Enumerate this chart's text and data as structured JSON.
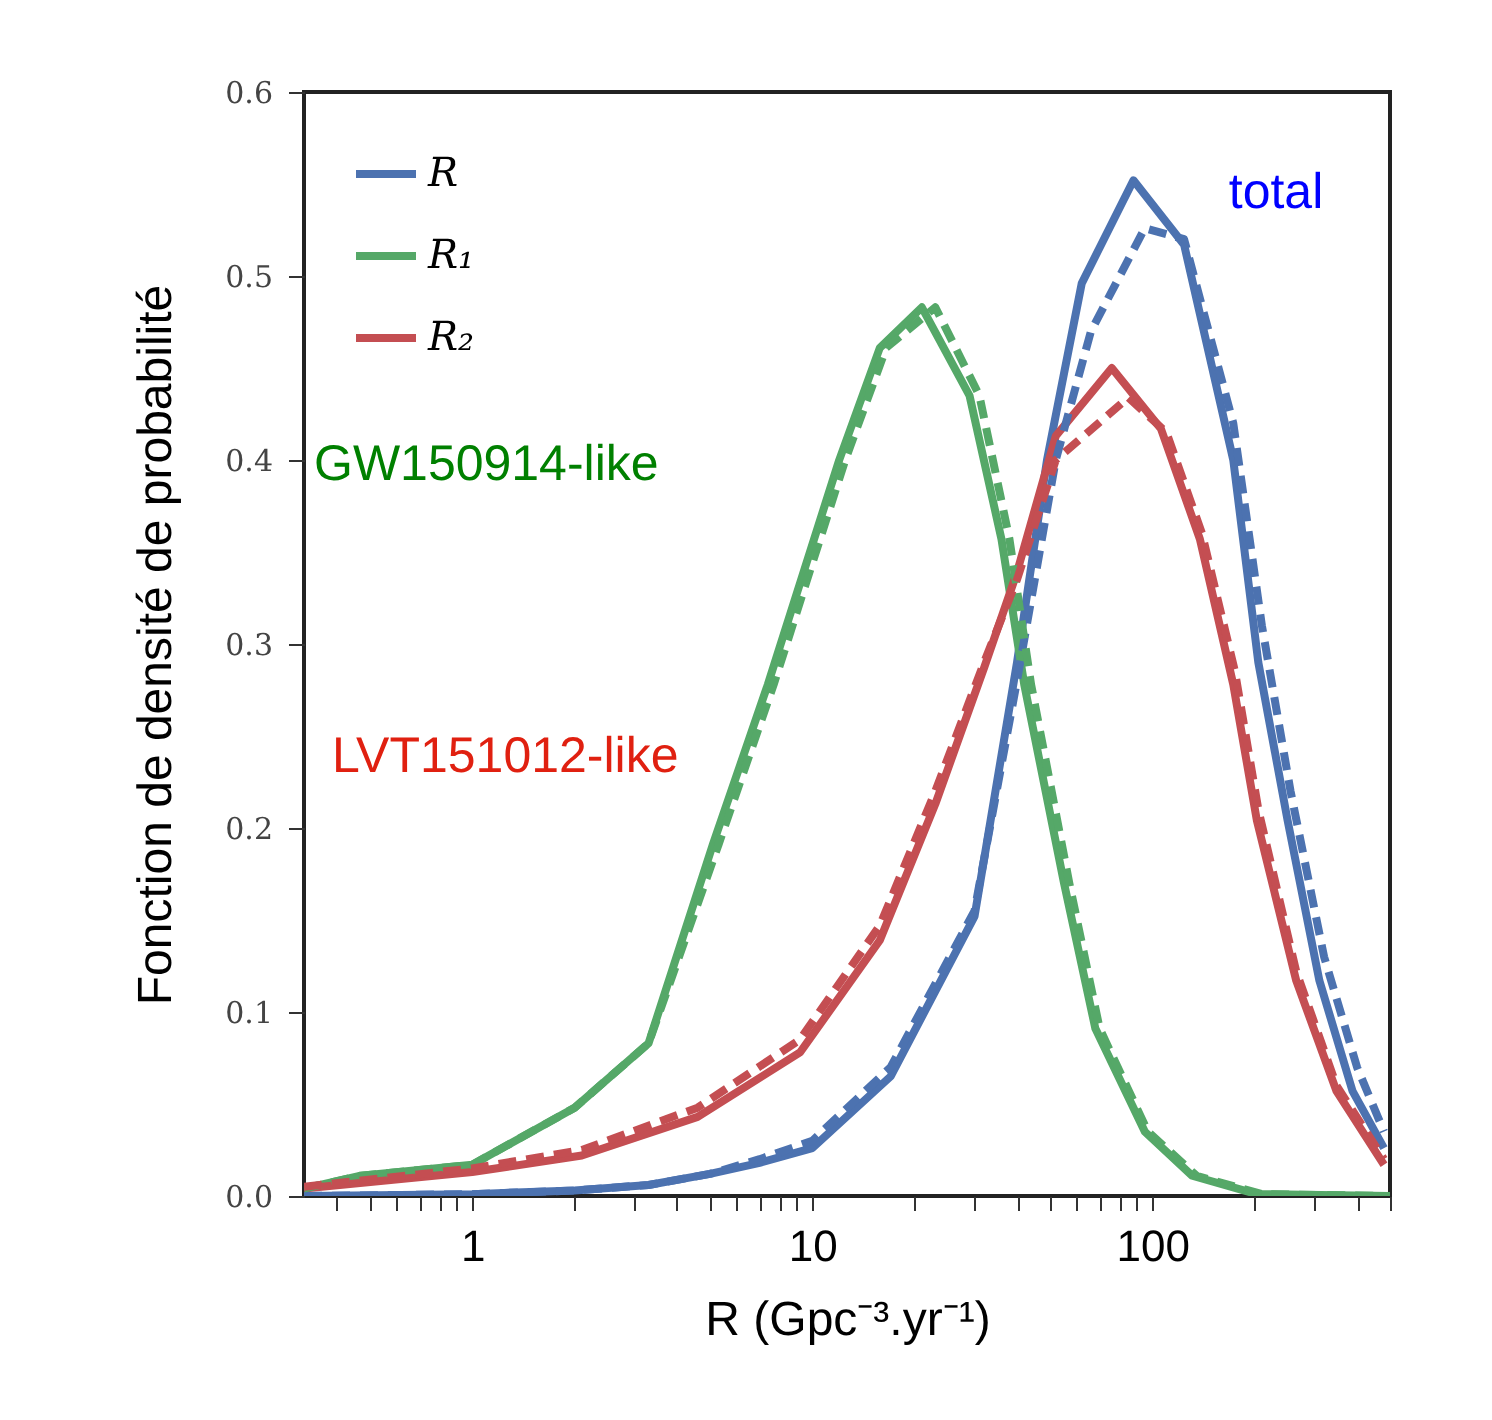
{
  "chart_data": {
    "type": "line",
    "xlabel": "R (Gpc⁻³.yr⁻¹)",
    "ylabel": "Fonction de densité de probabilité",
    "log": "x",
    "xlim": [
      0.32,
      500
    ],
    "ylim": [
      0,
      0.6
    ],
    "xticks": [
      {
        "value": 0.4,
        "label": null
      },
      {
        "value": 0.5,
        "label": null
      },
      {
        "value": 0.6,
        "label": null
      },
      {
        "value": 0.7,
        "label": null
      },
      {
        "value": 0.8,
        "label": null
      },
      {
        "value": 0.9,
        "label": null
      },
      1,
      {
        "value": 2,
        "label": null
      },
      {
        "value": 3,
        "label": null
      },
      {
        "value": 4,
        "label": null
      },
      {
        "value": 5,
        "label": null
      },
      {
        "value": 6,
        "label": null
      },
      {
        "value": 7,
        "label": null
      },
      {
        "value": 8,
        "label": null
      },
      {
        "value": 9,
        "label": null
      },
      10,
      {
        "value": 20,
        "label": null
      },
      {
        "value": 30,
        "label": null
      },
      {
        "value": 40,
        "label": null
      },
      {
        "value": 50,
        "label": null
      },
      {
        "value": 60,
        "label": null
      },
      {
        "value": 70,
        "label": null
      },
      {
        "value": 80,
        "label": null
      },
      {
        "value": 90,
        "label": null
      },
      100,
      {
        "value": 200,
        "label": null
      },
      {
        "value": 300,
        "label": null
      },
      {
        "value": 400,
        "label": null
      },
      {
        "value": 500,
        "label": null
      }
    ],
    "yticks": [
      {
        "value": 0,
        "label": "0.0"
      },
      0.1,
      0.2,
      0.3,
      0.4,
      0.5,
      0.6
    ],
    "grid": false,
    "legend": "top left",
    "marker": "none",
    "annotations": [
      "total",
      "GW150914-like",
      "LVT151012-like"
    ],
    "series": [
      {
        "name": "R",
        "color": "#4c72b0",
        "line_style": "solid",
        "x": [
          0.32,
          1,
          2,
          3.3,
          5,
          7,
          10,
          17,
          30,
          40,
          49,
          62,
          88,
          124,
          173,
          205,
          250,
          310,
          388,
          480
        ],
        "values": [
          0,
          0.001,
          0.003,
          0.006,
          0.012,
          0.018,
          0.026,
          0.065,
          0.152,
          0.29,
          0.4,
          0.496,
          0.552,
          0.517,
          0.4,
          0.29,
          0.204,
          0.117,
          0.057,
          0.026
        ]
      },
      {
        "color": "#4c72b0",
        "line_style": "dashed",
        "x": [
          0.32,
          1,
          2,
          3.3,
          5,
          7,
          10,
          17,
          30,
          40,
          52,
          66,
          95,
          124,
          173,
          210,
          255,
          320,
          400,
          480
        ],
        "values": [
          0,
          0.001,
          0.003,
          0.006,
          0.012,
          0.02,
          0.03,
          0.07,
          0.155,
          0.28,
          0.4,
          0.47,
          0.526,
          0.52,
          0.42,
          0.31,
          0.22,
          0.13,
          0.07,
          0.035
        ]
      },
      {
        "name": "R₁",
        "color": "#55a868",
        "line_style": "solid",
        "x": [
          0.32,
          0.47,
          1,
          2,
          3.3,
          5.1,
          7.4,
          12,
          15.8,
          21,
          29,
          36,
          42,
          55,
          68,
          95,
          131,
          203,
          500
        ],
        "values": [
          0.004,
          0.011,
          0.017,
          0.048,
          0.083,
          0.191,
          0.278,
          0.4,
          0.461,
          0.483,
          0.435,
          0.357,
          0.278,
          0.17,
          0.091,
          0.035,
          0.011,
          0.001,
          0
        ]
      },
      {
        "color": "#55a868",
        "line_style": "dashed",
        "x": [
          0.32,
          0.47,
          1,
          2,
          3.3,
          5.3,
          7.7,
          12.5,
          16.5,
          23,
          31,
          38,
          44,
          57,
          70,
          97,
          135,
          210,
          500
        ],
        "values": [
          0.004,
          0.011,
          0.017,
          0.048,
          0.083,
          0.191,
          0.278,
          0.4,
          0.461,
          0.483,
          0.435,
          0.357,
          0.278,
          0.17,
          0.091,
          0.035,
          0.011,
          0.001,
          0
        ]
      },
      {
        "name": "R₂",
        "color": "#c44e52",
        "line_style": "solid",
        "x": [
          0.32,
          1,
          2.1,
          4.6,
          9.2,
          15.8,
          23,
          32,
          40,
          52,
          76,
          106,
          138,
          173,
          203,
          265,
          348,
          480
        ],
        "values": [
          0.004,
          0.013,
          0.022,
          0.043,
          0.078,
          0.139,
          0.213,
          0.287,
          0.339,
          0.413,
          0.45,
          0.417,
          0.357,
          0.278,
          0.204,
          0.117,
          0.057,
          0.017
        ]
      },
      {
        "color": "#c44e52",
        "line_style": "dashed",
        "x": [
          0.32,
          1,
          2.1,
          4.6,
          9.2,
          15.8,
          23,
          32,
          40,
          52,
          85,
          110,
          140,
          175,
          205,
          265,
          348,
          480
        ],
        "values": [
          0.005,
          0.015,
          0.025,
          0.048,
          0.085,
          0.147,
          0.22,
          0.29,
          0.335,
          0.4,
          0.434,
          0.415,
          0.36,
          0.285,
          0.21,
          0.122,
          0.06,
          0.02
        ]
      }
    ]
  }
}
